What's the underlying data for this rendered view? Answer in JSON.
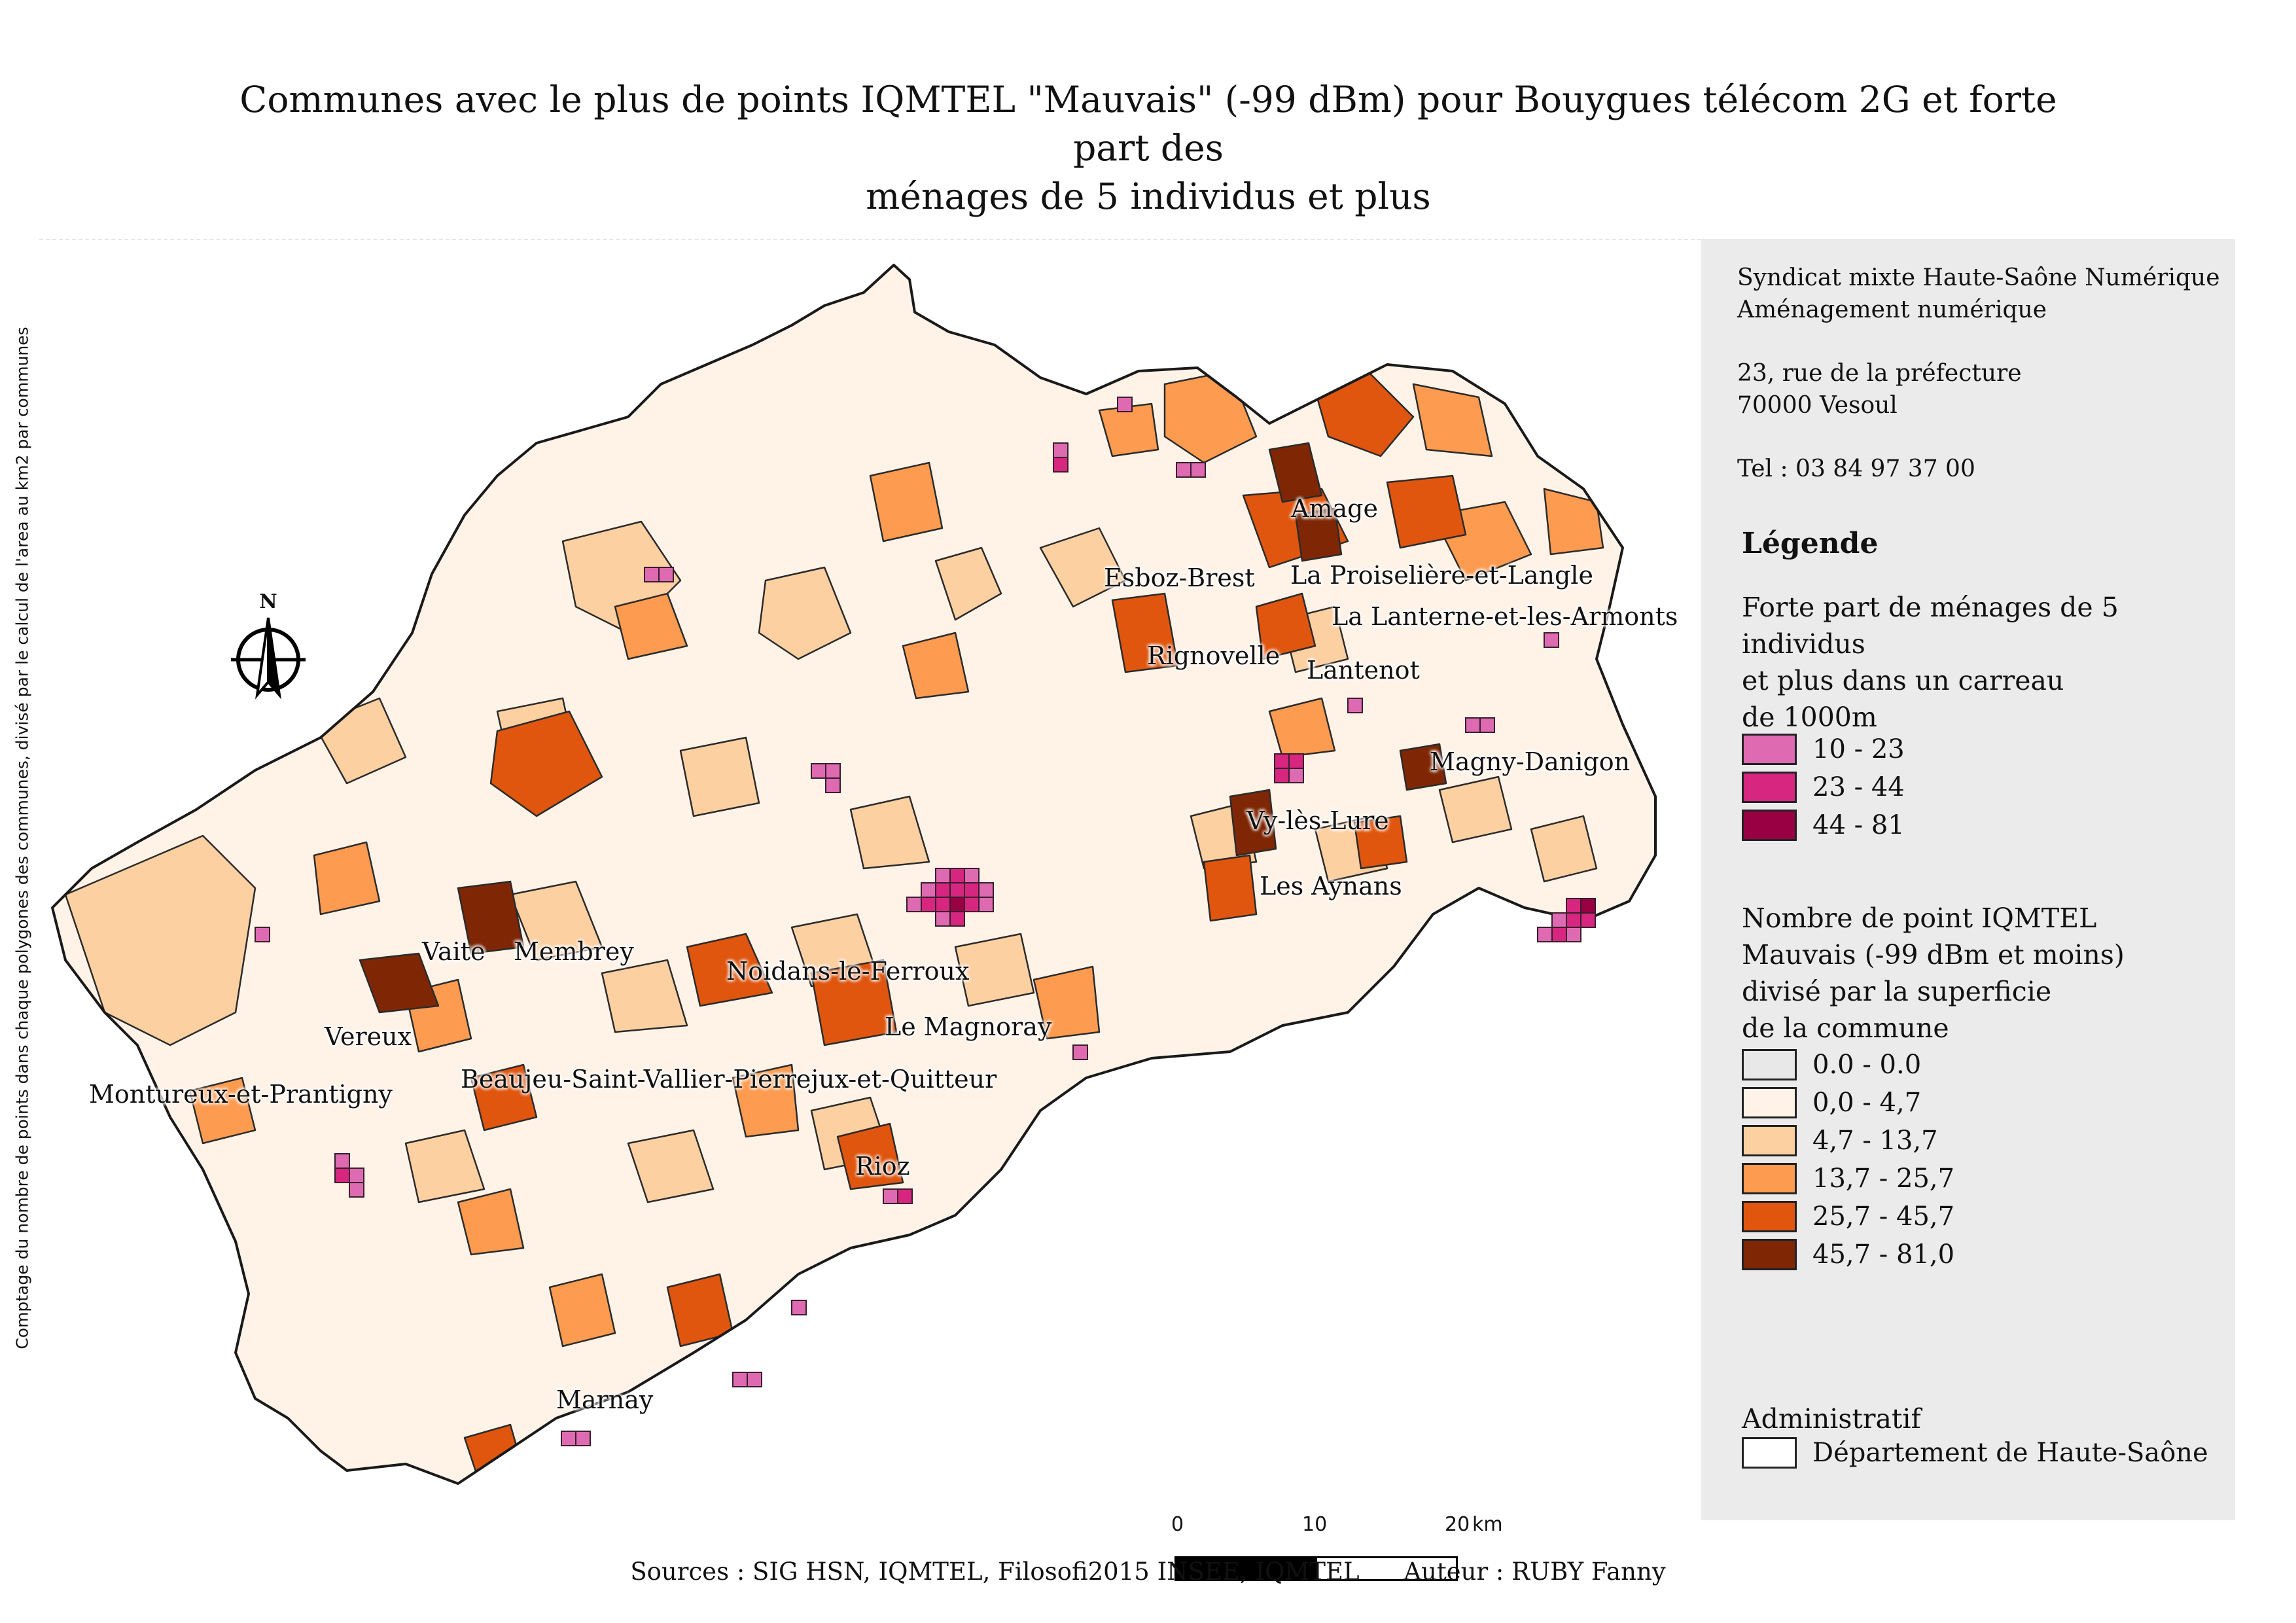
{
  "title_line1": "Communes avec le plus de points IQMTEL \"Mauvais\" (-99 dBm) pour Bouygues télécom 2G et forte part des",
  "title_line2": "ménages de 5 individus et plus",
  "side_caption": "Comptage du nombre de points dans chaque polygones des communes, divisé par le calcul de l'area au km2 par communes",
  "north_arrow": {
    "letter": "N",
    "icon": "compass-rose-icon"
  },
  "scale_bar": {
    "ticks": [
      "0",
      "10",
      "20"
    ],
    "unit": "km"
  },
  "place_labels": {
    "amage": "Amage",
    "esboz_brest": "Esboz-Brest",
    "la_proiseliere": "La Proiselière-et-Langle",
    "la_lanterne": "La Lanterne-et-les-Armonts",
    "rignovelle": "Rignovelle",
    "lantenot": "Lantenot",
    "magny_danigon": "Magny-Danigon",
    "vy_les_lure": "Vy-lès-Lure",
    "les_aynans": "Les Aynans",
    "vaite": "Vaite",
    "membrey": "Membrey",
    "noidans": "Noidans-le-Ferroux",
    "le_magnoray": "Le Magnoray",
    "vereux": "Vereux",
    "beaujeu": "Beaujeu-Saint-Vallier-Pierrejux-et-Quitteur",
    "montureux": "Montureux-et-Prantigny",
    "rioz": "Rioz",
    "marnay": "Marnay"
  },
  "legend_panel": {
    "org_name": "Syndicat mixte Haute-Saône Numérique",
    "org_dept": "Aménagement numérique",
    "address_street": "23, rue de la préfecture",
    "address_city": "70000 Vesoul",
    "phone": "Tel : 03 84 97 37 00",
    "legend_title": "Légende",
    "households_title_1": "Forte part de ménages de 5 individus",
    "households_title_2": "et plus dans un carreau",
    "households_title_3": "de 1000m",
    "households_classes": [
      {
        "label": "10 - 23",
        "color": "#de6ab2"
      },
      {
        "label": "23 - 44",
        "color": "#d6267f"
      },
      {
        "label": "44 - 81",
        "color": "#980043"
      }
    ],
    "points_title_1": "Nombre de point IQMTEL",
    "points_title_2": "Mauvais (-99 dBm et moins)",
    "points_title_3": "divisé par la superficie",
    "points_title_4": "de la commune",
    "points_classes": [
      {
        "label": "0.0 - 0.0",
        "color": "#e8e8e8"
      },
      {
        "label": "0,0 - 4,7",
        "color": "#fff3e8"
      },
      {
        "label": "4,7 - 13,7",
        "color": "#fdd0a2"
      },
      {
        "label": "13,7 - 25,7",
        "color": "#fd9b50"
      },
      {
        "label": "25,7 - 45,7",
        "color": "#e0560f"
      },
      {
        "label": "45,7 - 81,0",
        "color": "#7f2704"
      }
    ],
    "admin_title": "Administratif",
    "admin_item": {
      "label": "Département de Haute-Saône",
      "color": "#ffffff"
    }
  },
  "footer": {
    "sources": "Sources : SIG HSN, IQMTEL, Filosofi2015 INSEE, IQMTEL",
    "author": "Auteur : RUBY Fanny"
  }
}
